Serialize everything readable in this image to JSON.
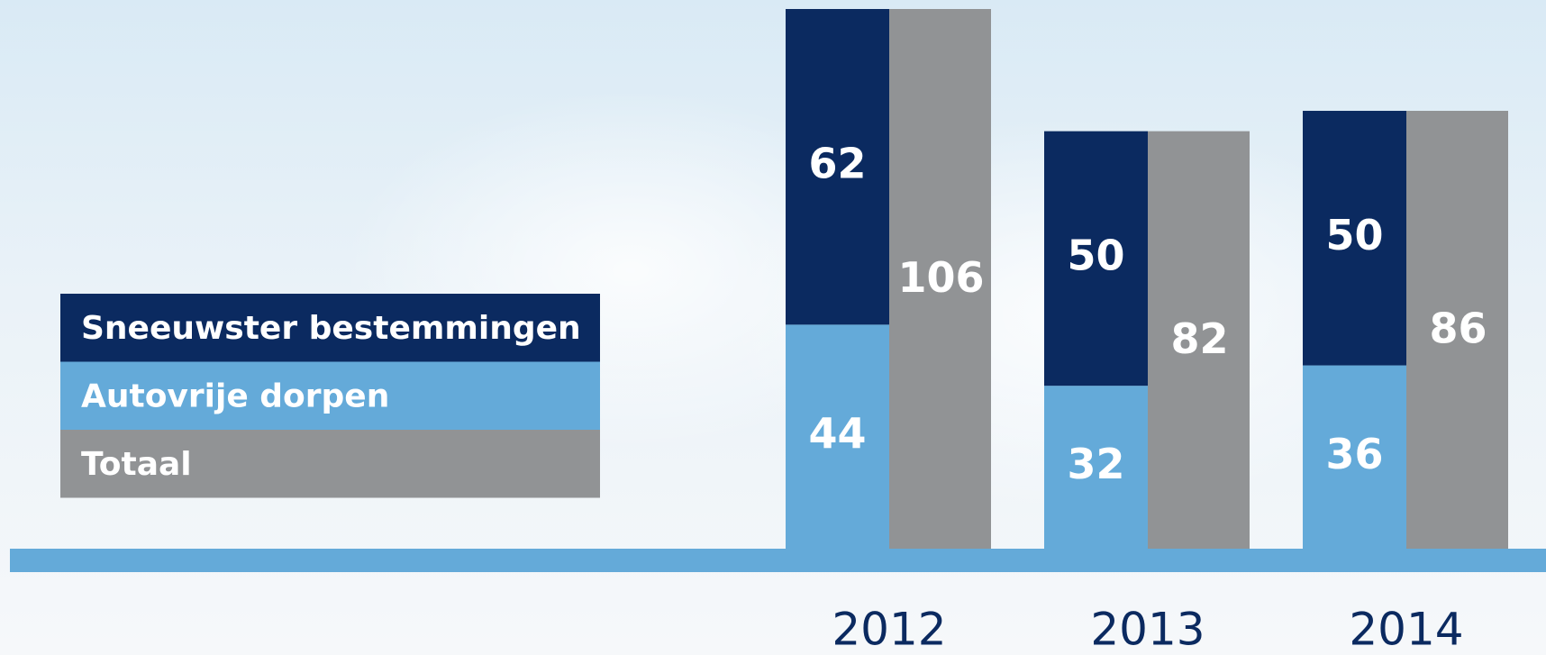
{
  "chart_data": {
    "type": "bar",
    "categories": [
      "2012",
      "2013",
      "2014"
    ],
    "series": [
      {
        "name": "Sneeuwster bestemmingen",
        "color": "#0b2a60",
        "values": [
          62,
          50,
          50
        ]
      },
      {
        "name": "Autovrije dorpen",
        "color": "#64aad9",
        "values": [
          44,
          32,
          36
        ]
      },
      {
        "name": "Totaal",
        "color": "#919395",
        "values": [
          106,
          82,
          86
        ]
      }
    ]
  }
}
